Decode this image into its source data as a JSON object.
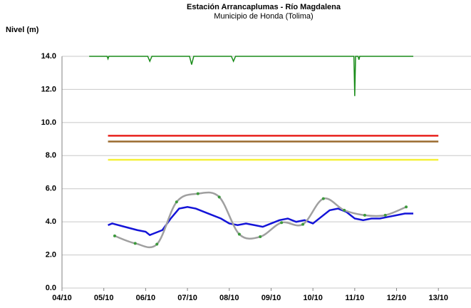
{
  "chart_data": {
    "type": "line",
    "title": "Estación Arrancaplumas - Río Magdalena",
    "subtitle": "Municipio de Honda (Tolima)",
    "y_label": "Nivel (m)",
    "xlim": [
      4,
      13.78
    ],
    "xticks": [
      {
        "value": 4,
        "label": "04/10"
      },
      {
        "value": 5,
        "label": "05/10"
      },
      {
        "value": 6,
        "label": "06/10"
      },
      {
        "value": 7,
        "label": "07/10"
      },
      {
        "value": 8,
        "label": "08/10"
      },
      {
        "value": 9,
        "label": "09/10"
      },
      {
        "value": 10,
        "label": "10/10"
      },
      {
        "value": 11,
        "label": "11/10"
      },
      {
        "value": 12,
        "label": "12/10"
      },
      {
        "value": 13,
        "label": "13/10"
      }
    ],
    "ylim": [
      0,
      14
    ],
    "yticks": [
      {
        "value": 0,
        "label": "0.0"
      },
      {
        "value": 2,
        "label": "2.0"
      },
      {
        "value": 4,
        "label": "4.0"
      },
      {
        "value": 6,
        "label": "6.0"
      },
      {
        "value": 8,
        "label": "8.0"
      },
      {
        "value": 10,
        "label": "10.0"
      },
      {
        "value": 12,
        "label": "12.0"
      },
      {
        "value": 14,
        "label": "14.0"
      }
    ],
    "grid": true,
    "series": [
      {
        "color": "#1a8c1a",
        "x": [
          4.65,
          5.08,
          5.1,
          5.12,
          6.05,
          6.1,
          6.15,
          7.05,
          7.1,
          7.15,
          8.05,
          8.1,
          8.15,
          10.98,
          11.0,
          11.02,
          11.08,
          11.1,
          11.12,
          12.4
        ],
        "values": [
          14,
          14,
          13.85,
          14,
          14,
          13.7,
          14,
          14,
          13.5,
          14,
          14,
          13.7,
          14,
          14,
          11.6,
          14,
          14,
          13.8,
          14,
          14
        ]
      },
      {
        "color": "#e8211c",
        "x": [
          5.1,
          13
        ],
        "values": [
          9.2,
          9.2
        ]
      },
      {
        "color": "#9a6a2e",
        "x": [
          5.1,
          13
        ],
        "values": [
          8.85,
          8.85
        ]
      },
      {
        "color": "#f5f03a",
        "x": [
          5.1,
          13
        ],
        "values": [
          7.75,
          7.75
        ]
      },
      {
        "color": "#1414d8",
        "x": [
          5.1,
          5.2,
          5.5,
          5.8,
          6.0,
          6.1,
          6.2,
          6.4,
          6.6,
          6.8,
          7.0,
          7.2,
          7.5,
          7.8,
          8.0,
          8.2,
          8.4,
          8.6,
          8.8,
          9.0,
          9.2,
          9.4,
          9.6,
          9.8,
          10.0,
          10.2,
          10.4,
          10.6,
          10.8,
          11.0,
          11.2,
          11.4,
          11.6,
          11.8,
          12.0,
          12.2,
          12.4
        ],
        "values": [
          3.8,
          3.9,
          3.7,
          3.5,
          3.4,
          3.2,
          3.3,
          3.5,
          4.2,
          4.8,
          4.9,
          4.8,
          4.5,
          4.2,
          3.9,
          3.8,
          3.9,
          3.8,
          3.7,
          3.9,
          4.1,
          4.2,
          4.0,
          4.1,
          3.9,
          4.3,
          4.7,
          4.8,
          4.6,
          4.2,
          4.1,
          4.2,
          4.2,
          4.3,
          4.4,
          4.5,
          4.5
        ]
      },
      {
        "color": "#a0a0a0",
        "marker_color": "#3c9a3c",
        "smooth": true,
        "x": [
          5.26,
          5.75,
          6.27,
          6.74,
          7.25,
          7.76,
          8.24,
          8.74,
          9.25,
          9.76,
          10.25,
          10.75,
          11.24,
          11.73,
          12.23
        ],
        "values": [
          3.15,
          2.7,
          2.65,
          5.2,
          5.7,
          5.5,
          3.25,
          3.1,
          3.95,
          3.85,
          5.4,
          4.7,
          4.4,
          4.4,
          4.9
        ]
      }
    ]
  }
}
